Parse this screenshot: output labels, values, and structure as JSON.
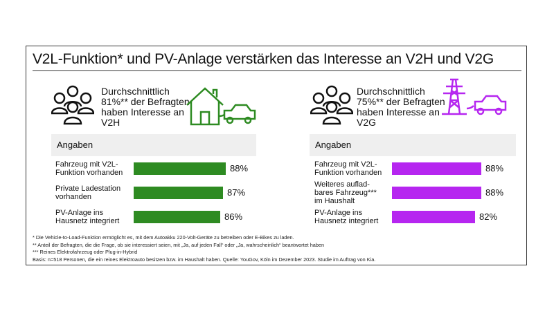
{
  "title": "V2L-Funktion* und PV-Anlage verstärken das Interesse an V2H und V2G",
  "colors": {
    "v2h": "#2e8b22",
    "v2g": "#b626f0"
  },
  "panels": [
    {
      "summary": [
        "Durchschnittlich",
        "81%** der Befragten",
        "haben Interesse an",
        "V2H"
      ],
      "icons": [
        "people-icon",
        "house-icon",
        "car-icon"
      ],
      "header": "Angaben"
    },
    {
      "summary": [
        "Durchschnittlich",
        "75%** der Befragten",
        "haben Interesse an",
        "V2G"
      ],
      "icons": [
        "people-icon",
        "power-pylon-icon",
        "car-icon"
      ],
      "header": "Angaben"
    }
  ],
  "chart_data": [
    {
      "type": "bar",
      "orientation": "horizontal",
      "categories": [
        "Fahrzeug mit V2L-Funktion vorhanden",
        "Private Ladestation vorhanden",
        "PV-Anlage ins Hausnetz integriert"
      ],
      "values": [
        88,
        87,
        86
      ],
      "labels": [
        "88%",
        "87%",
        "86%"
      ],
      "color": "#2e8b22"
    },
    {
      "type": "bar",
      "orientation": "horizontal",
      "categories": [
        "Fahrzeug mit V2L-Funktion vorhanden",
        "Weiteres auflad-bares Fahrzeug*** im Haushalt",
        "PV-Anlage ins Hausnetz integriert"
      ],
      "values": [
        88,
        88,
        82
      ],
      "labels": [
        "88%",
        "88%",
        "82%"
      ],
      "color": "#b626f0"
    }
  ],
  "category_lines": [
    [
      [
        "Fahrzeug mit V2L-",
        "Funktion vorhanden"
      ],
      [
        "Private Ladestation",
        "vorhanden"
      ],
      [
        "PV-Anlage ins",
        "Hausnetz integriert"
      ]
    ],
    [
      [
        "Fahrzeug mit V2L-",
        "Funktion vorhanden"
      ],
      [
        "Weiteres auflad-",
        "bares Fahrzeug***",
        "im Haushalt"
      ],
      [
        "PV-Anlage ins",
        "Hausnetz integriert"
      ]
    ]
  ],
  "footnotes": [
    "* Die Vehicle-to-Load-Funktion ermöglicht es, mit dem Autoakku 220-Volt-Geräte zu betreiben oder E-Bikes zu laden.",
    "** Anteil der Befragten, die die Frage, ob sie interessiert seien, mit „Ja, auf jeden Fall“ oder „Ja, wahrscheinlich“ beantwortet haben",
    "*** Reines Elektrofahrzeug oder Plug-in-Hybrid",
    "Basis: n=518 Personen, die ein reines Elektroauto besitzen bzw. im Haushalt haben. Quelle: YouGov, Köln im Dezember 2023. Studie im Auftrag von Kia."
  ]
}
